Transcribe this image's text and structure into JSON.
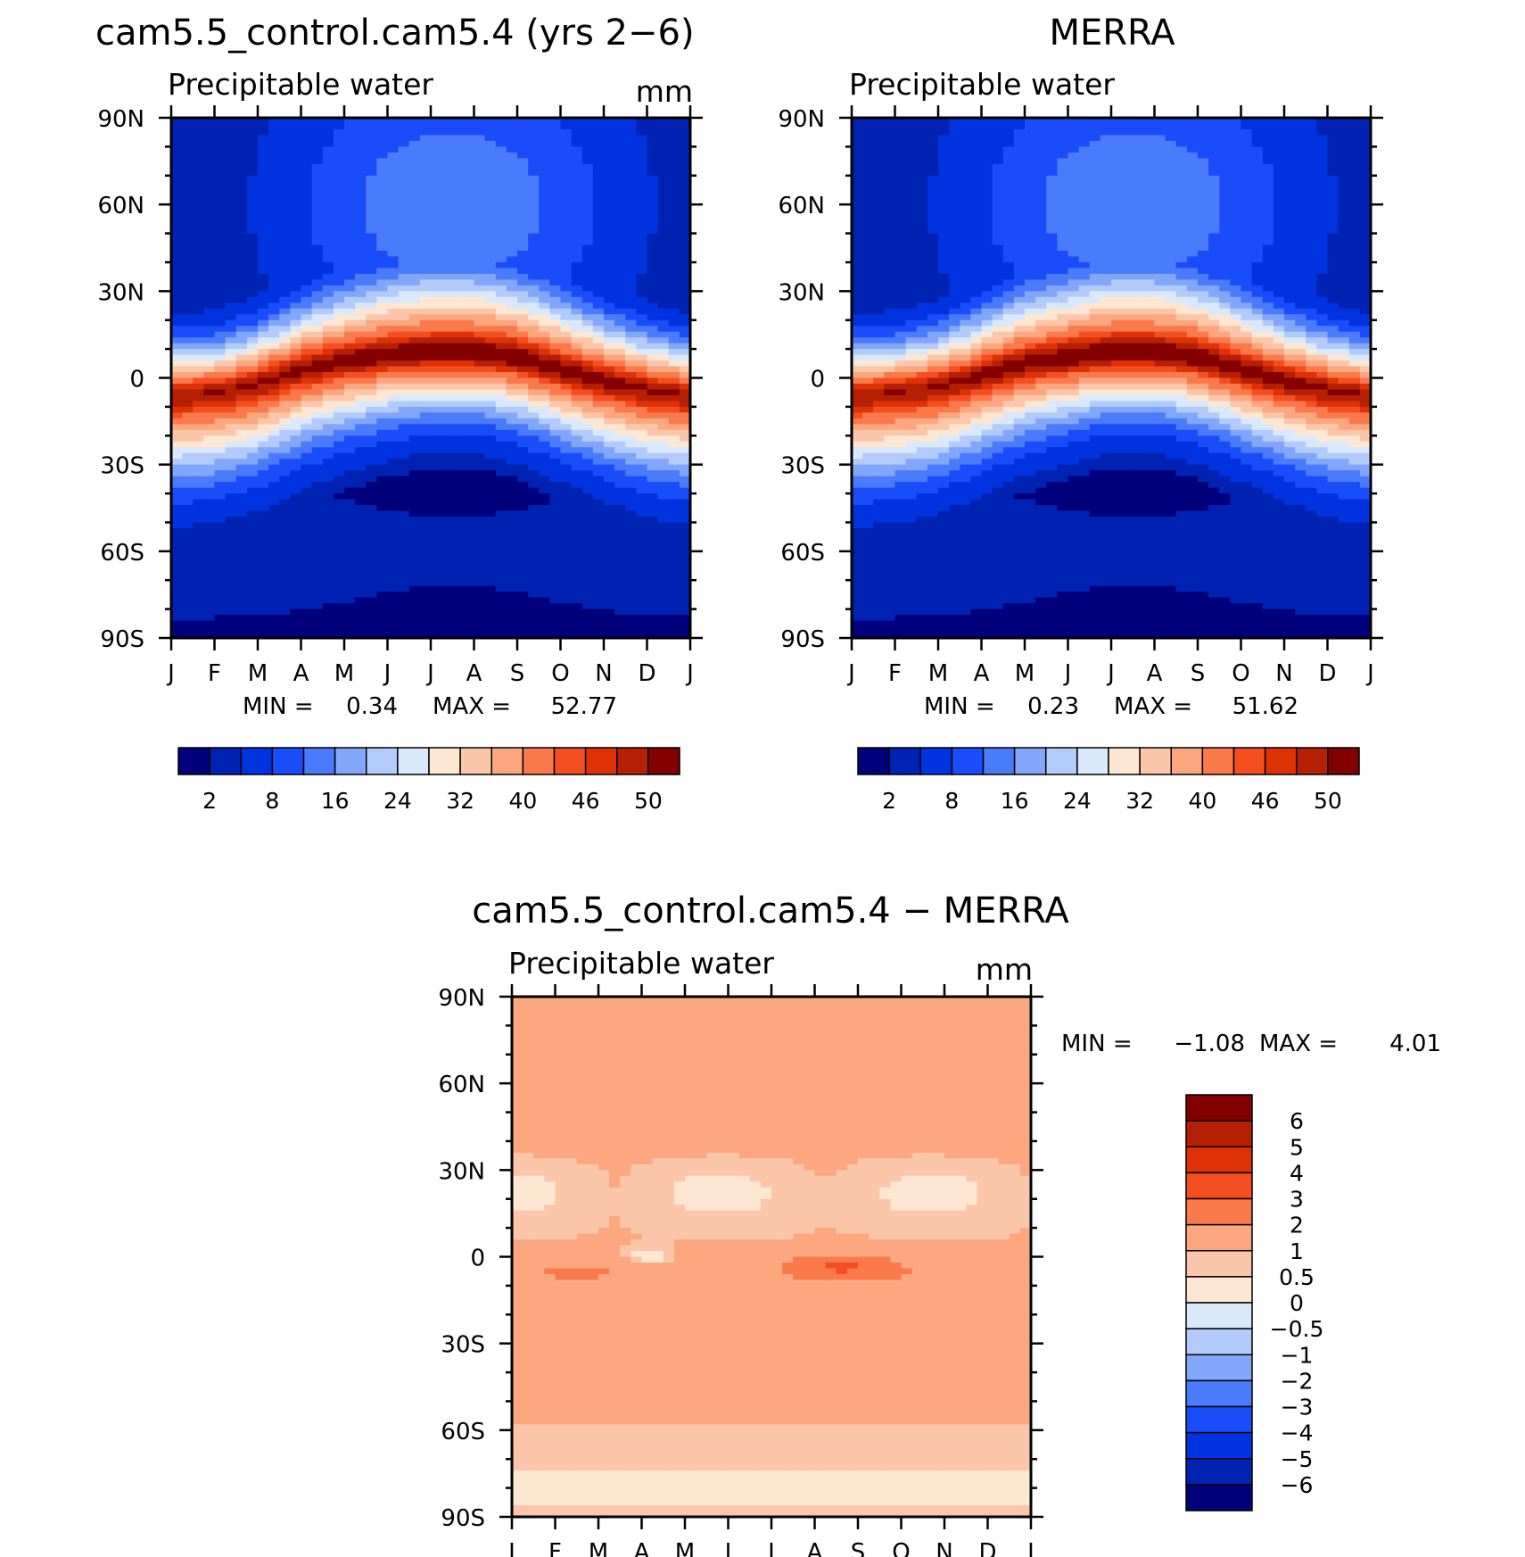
{
  "chart_data": [
    {
      "id": "panel-model",
      "type": "heatmap",
      "title": "cam5.5_control.cam5.4 (yrs 2−6)",
      "subtitle": "Precipitable water",
      "units": "mm",
      "xlabel": "",
      "ylabel": "",
      "x_tick_labels": [
        "J",
        "F",
        "M",
        "A",
        "M",
        "J",
        "J",
        "A",
        "S",
        "O",
        "N",
        "D",
        "J"
      ],
      "y_tick_labels": [
        "90N",
        "60N",
        "30N",
        "0",
        "30S",
        "60S",
        "90S"
      ],
      "y_ticks": [
        90,
        60,
        30,
        0,
        -30,
        -60,
        -90
      ],
      "ylim": [
        -90,
        90
      ],
      "min_label": "MIN =",
      "min_value": "0.34",
      "max_label": "MAX =",
      "max_value": "52.77",
      "field_min": 0.34,
      "field_max": 52.77,
      "colorbar_labels": [
        "2",
        "8",
        "16",
        "24",
        "32",
        "40",
        "46",
        "50"
      ],
      "colorbar_levels": [
        2,
        4,
        8,
        12,
        16,
        20,
        24,
        28,
        32,
        36,
        40,
        44,
        46,
        48,
        50
      ],
      "equator_peak_lat": [
        -6,
        -5,
        -2,
        3,
        6,
        8,
        9,
        9,
        7,
        3,
        -1,
        -4
      ]
    },
    {
      "id": "panel-obs",
      "type": "heatmap",
      "title": "MERRA",
      "subtitle": "Precipitable water",
      "units": "",
      "x_tick_labels": [
        "J",
        "F",
        "M",
        "A",
        "M",
        "J",
        "J",
        "A",
        "S",
        "O",
        "N",
        "D",
        "J"
      ],
      "y_tick_labels": [
        "90N",
        "60N",
        "30N",
        "0",
        "30S",
        "60S",
        "90S"
      ],
      "y_ticks": [
        90,
        60,
        30,
        0,
        -30,
        -60,
        -90
      ],
      "ylim": [
        -90,
        90
      ],
      "min_label": "MIN =",
      "min_value": "0.23",
      "max_label": "MAX =",
      "max_value": "51.62",
      "field_min": 0.23,
      "field_max": 51.62,
      "colorbar_labels": [
        "2",
        "8",
        "16",
        "24",
        "32",
        "40",
        "46",
        "50"
      ],
      "colorbar_levels": [
        2,
        4,
        8,
        12,
        16,
        20,
        24,
        28,
        32,
        36,
        40,
        44,
        46,
        48,
        50
      ],
      "equator_peak_lat": [
        -6,
        -5,
        -3,
        1,
        5,
        7,
        9,
        9,
        7,
        3,
        -1,
        -4
      ]
    },
    {
      "id": "panel-diff",
      "type": "heatmap",
      "title": "cam5.5_control.cam5.4 − MERRA",
      "subtitle": "Precipitable water",
      "units": "mm",
      "x_tick_labels": [
        "J",
        "F",
        "M",
        "A",
        "M",
        "J",
        "J",
        "A",
        "S",
        "O",
        "N",
        "D",
        "J"
      ],
      "y_tick_labels": [
        "90N",
        "60N",
        "30N",
        "0",
        "30S",
        "60S",
        "90S"
      ],
      "y_ticks": [
        90,
        60,
        30,
        0,
        -30,
        -60,
        -90
      ],
      "ylim": [
        -90,
        90
      ],
      "min_label": "MIN =",
      "min_value": "−1.08",
      "max_label": "MAX =",
      "max_value": "4.01",
      "field_min": -1.08,
      "field_max": 4.01,
      "colorbar_labels": [
        "6",
        "5",
        "4",
        "3",
        "2",
        "1",
        "0.5",
        "0",
        "−0.5",
        "−1",
        "−2",
        "−3",
        "−4",
        "−5",
        "−6"
      ],
      "colorbar_levels": [
        -6,
        -5,
        -4,
        -3,
        -2,
        -1,
        -0.5,
        0,
        0.5,
        1,
        2,
        3,
        4,
        5,
        6
      ]
    }
  ],
  "colors": {
    "sequential": [
      "#00007d",
      "#0022b3",
      "#0033e0",
      "#1a4dfa",
      "#4a7bfa",
      "#82a6fa",
      "#b3cbfb",
      "#d9e9fb",
      "#fde7d2",
      "#fcc6aa",
      "#fca77f",
      "#fb7a4b",
      "#f44e21",
      "#de3206",
      "#b51f03",
      "#820000"
    ],
    "diverging": [
      "#00007d",
      "#0022b3",
      "#0033e0",
      "#1a4dfa",
      "#4a7bfa",
      "#82a6fa",
      "#b3cbfb",
      "#d9e9fb",
      "#fde7d2",
      "#fcc6aa",
      "#fca77f",
      "#fb7a4b",
      "#f44e21",
      "#de3206",
      "#b51f03",
      "#820000"
    ]
  }
}
